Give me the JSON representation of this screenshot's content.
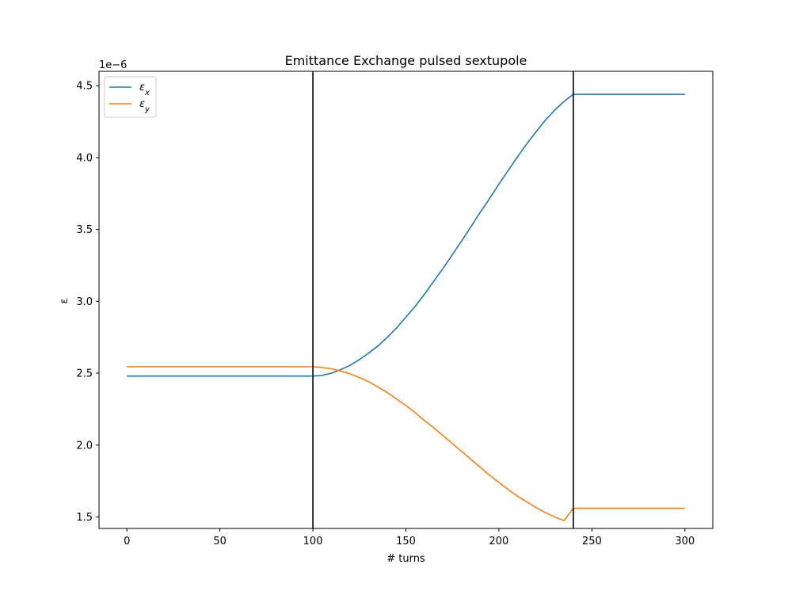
{
  "chart_data": {
    "type": "line",
    "title": "Emittance Exchange pulsed sextupole",
    "xlabel": "# turns",
    "ylabel": "ε",
    "y_offset_label": "1e−6",
    "xlim": [
      -15,
      315
    ],
    "ylim": [
      1.42,
      4.6
    ],
    "y_scale_note": "values in units of 1e-6",
    "x_ticks": [
      0,
      50,
      100,
      150,
      200,
      250,
      300
    ],
    "y_ticks": [
      1.5,
      2.0,
      2.5,
      3.0,
      3.5,
      4.0,
      4.5
    ],
    "x_tick_labels": [
      "0",
      "50",
      "100",
      "150",
      "200",
      "250",
      "300"
    ],
    "y_tick_labels": [
      "1.5",
      "2.0",
      "2.5",
      "3.0",
      "3.5",
      "4.0",
      "4.5"
    ],
    "grid": false,
    "legend_position": "top-left",
    "vertical_lines": [
      100,
      240
    ],
    "series": [
      {
        "name": "εx",
        "label_base": "ε",
        "label_sub": "x",
        "color": "#1f77b4",
        "points": [
          [
            0,
            2.48
          ],
          [
            100,
            2.48
          ],
          [
            105,
            2.485
          ],
          [
            110,
            2.5
          ],
          [
            115,
            2.525
          ],
          [
            120,
            2.555
          ],
          [
            125,
            2.595
          ],
          [
            130,
            2.64
          ],
          [
            135,
            2.69
          ],
          [
            140,
            2.75
          ],
          [
            145,
            2.815
          ],
          [
            150,
            2.89
          ],
          [
            155,
            2.965
          ],
          [
            160,
            3.05
          ],
          [
            165,
            3.14
          ],
          [
            170,
            3.23
          ],
          [
            175,
            3.325
          ],
          [
            180,
            3.42
          ],
          [
            185,
            3.52
          ],
          [
            190,
            3.62
          ],
          [
            195,
            3.715
          ],
          [
            200,
            3.815
          ],
          [
            205,
            3.91
          ],
          [
            210,
            4.005
          ],
          [
            215,
            4.095
          ],
          [
            220,
            4.18
          ],
          [
            225,
            4.26
          ],
          [
            230,
            4.33
          ],
          [
            235,
            4.39
          ],
          [
            240,
            4.44
          ],
          [
            300,
            4.44
          ]
        ]
      },
      {
        "name": "εy",
        "label_base": "ε",
        "label_sub": "y",
        "color": "#ff7f0e",
        "points": [
          [
            0,
            2.545
          ],
          [
            100,
            2.545
          ],
          [
            105,
            2.54
          ],
          [
            110,
            2.53
          ],
          [
            115,
            2.515
          ],
          [
            120,
            2.495
          ],
          [
            125,
            2.47
          ],
          [
            130,
            2.44
          ],
          [
            135,
            2.405
          ],
          [
            140,
            2.365
          ],
          [
            145,
            2.32
          ],
          [
            150,
            2.275
          ],
          [
            155,
            2.225
          ],
          [
            160,
            2.17
          ],
          [
            165,
            2.12
          ],
          [
            170,
            2.065
          ],
          [
            175,
            2.01
          ],
          [
            180,
            1.955
          ],
          [
            185,
            1.9
          ],
          [
            190,
            1.845
          ],
          [
            195,
            1.79
          ],
          [
            200,
            1.74
          ],
          [
            205,
            1.69
          ],
          [
            210,
            1.645
          ],
          [
            215,
            1.605
          ],
          [
            220,
            1.565
          ],
          [
            225,
            1.53
          ],
          [
            230,
            1.5
          ],
          [
            235,
            1.475
          ],
          [
            240,
            1.56
          ],
          [
            300,
            1.56
          ]
        ]
      }
    ]
  }
}
